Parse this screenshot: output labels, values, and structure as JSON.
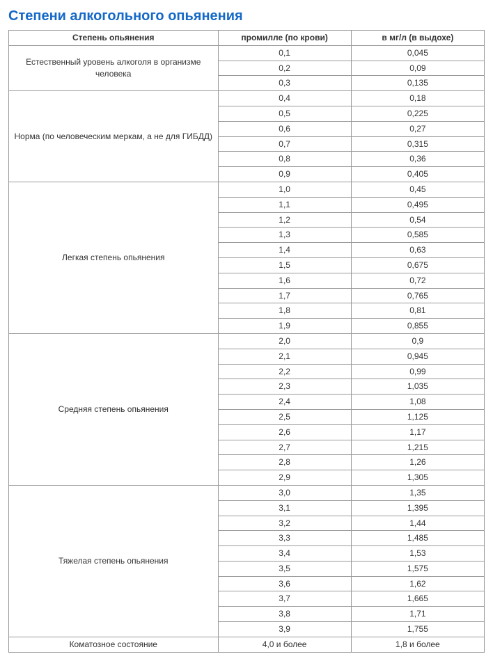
{
  "title": "Степени алкогольного опьянения",
  "table": {
    "columns": [
      "Степень опьянения",
      "промилле (по крови)",
      "в мг/л (в выдохе)"
    ],
    "stages": [
      {
        "label": "Естественный уровень алкоголя в организме человека",
        "rows": [
          [
            "0,1",
            "0,045"
          ],
          [
            "0,2",
            "0,09"
          ],
          [
            "0,3",
            "0,135"
          ]
        ]
      },
      {
        "label": "Норма (по человеческим меркам, а не для ГИБДД)",
        "rows": [
          [
            "0,4",
            "0,18"
          ],
          [
            "0,5",
            "0,225"
          ],
          [
            "0,6",
            "0,27"
          ],
          [
            "0,7",
            "0,315"
          ],
          [
            "0,8",
            "0,36"
          ],
          [
            "0,9",
            "0,405"
          ]
        ]
      },
      {
        "label": "Легкая степень опьянения",
        "rows": [
          [
            "1,0",
            "0,45"
          ],
          [
            "1,1",
            "0,495"
          ],
          [
            "1,2",
            "0,54"
          ],
          [
            "1,3",
            "0,585"
          ],
          [
            "1,4",
            "0,63"
          ],
          [
            "1,5",
            "0,675"
          ],
          [
            "1,6",
            "0,72"
          ],
          [
            "1,7",
            "0,765"
          ],
          [
            "1,8",
            "0,81"
          ],
          [
            "1,9",
            "0,855"
          ]
        ]
      },
      {
        "label": "Средняя степень опьянения",
        "rows": [
          [
            "2,0",
            "0,9"
          ],
          [
            "2,1",
            "0,945"
          ],
          [
            "2,2",
            "0,99"
          ],
          [
            "2,3",
            "1,035"
          ],
          [
            "2,4",
            "1,08"
          ],
          [
            "2,5",
            "1,125"
          ],
          [
            "2,6",
            "1,17"
          ],
          [
            "2,7",
            "1,215"
          ],
          [
            "2,8",
            "1,26"
          ],
          [
            "2,9",
            "1,305"
          ]
        ]
      },
      {
        "label": "Тяжелая степень опьянения",
        "rows": [
          [
            "3,0",
            "1,35"
          ],
          [
            "3,1",
            "1,395"
          ],
          [
            "3,2",
            "1,44"
          ],
          [
            "3,3",
            "1,485"
          ],
          [
            "3,4",
            "1,53"
          ],
          [
            "3,5",
            "1,575"
          ],
          [
            "3,6",
            "1,62"
          ],
          [
            "3,7",
            "1,665"
          ],
          [
            "3,8",
            "1,71"
          ],
          [
            "3,9",
            "1,755"
          ]
        ]
      },
      {
        "label": "Коматозное состояние",
        "rows": [
          [
            "4,0 и более",
            "1,8 и более"
          ]
        ]
      }
    ]
  },
  "colors": {
    "title": "#1569c7",
    "border": "#999999",
    "text": "#333333",
    "background": "#ffffff"
  }
}
